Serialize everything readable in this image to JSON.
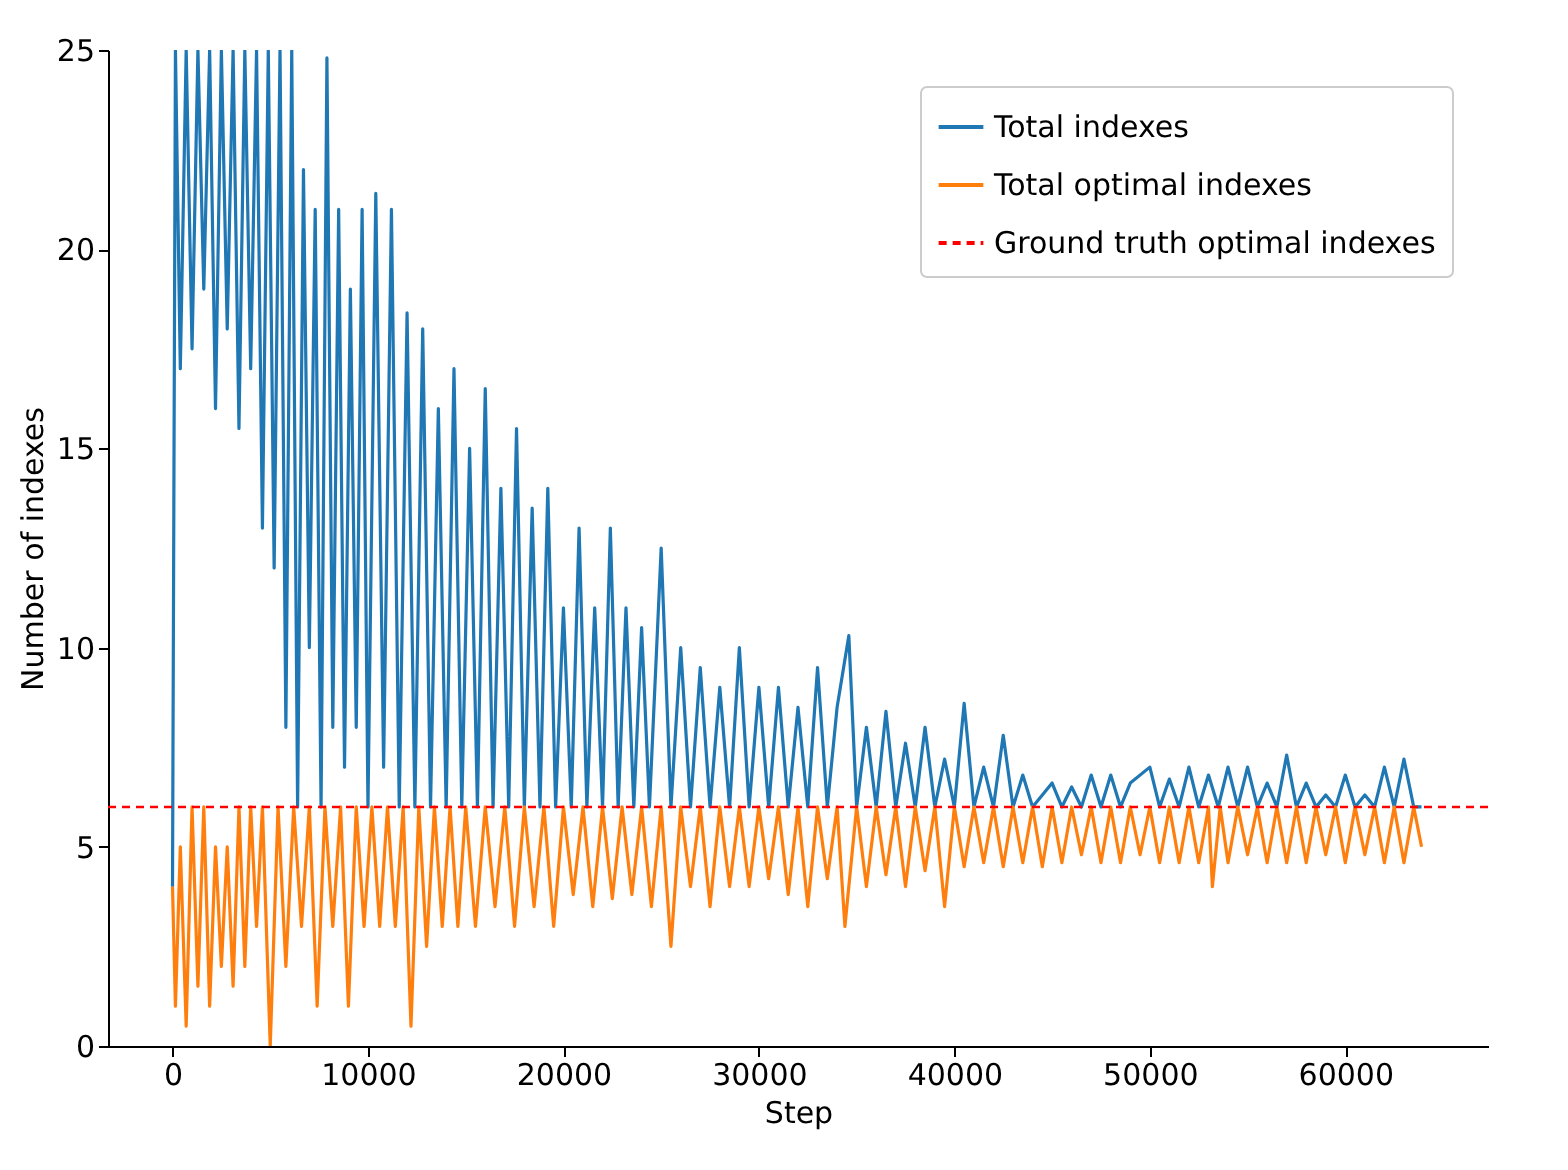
{
  "chart_data": {
    "type": "line",
    "xlabel": "Step",
    "ylabel": "Number of indexes",
    "xlim": [
      -3300,
      67300
    ],
    "ylim": [
      0,
      25
    ],
    "xticks": [
      0,
      10000,
      20000,
      30000,
      40000,
      50000,
      60000
    ],
    "yticks": [
      0,
      5,
      10,
      15,
      20,
      25
    ],
    "grid": false,
    "legend": "top right",
    "line_style": "solid",
    "marker": "none",
    "ref_lines": [
      {
        "axis": "y",
        "value": 6,
        "label": "Ground truth optimal indexes",
        "color": "#ff0000",
        "line_style": "dashed"
      }
    ],
    "series": [
      {
        "name": "Total indexes",
        "color": "#1f77b4",
        "x": [
          0,
          150,
          400,
          700,
          1000,
          1300,
          1600,
          1900,
          2200,
          2500,
          2800,
          3100,
          3400,
          3700,
          4000,
          4300,
          4600,
          4900,
          5200,
          5500,
          5800,
          6100,
          6400,
          6700,
          7000,
          7300,
          7600,
          7900,
          8200,
          8500,
          8800,
          9100,
          9400,
          9700,
          10000,
          10400,
          10800,
          11200,
          11600,
          12000,
          12400,
          12800,
          13200,
          13600,
          14000,
          14400,
          14800,
          15200,
          15600,
          16000,
          16400,
          16800,
          17200,
          17600,
          18000,
          18400,
          18800,
          19200,
          19600,
          20000,
          20400,
          20800,
          21200,
          21600,
          22000,
          22400,
          22800,
          23200,
          23600,
          24000,
          24400,
          25000,
          25500,
          26000,
          26500,
          27000,
          27500,
          28000,
          28500,
          29000,
          29500,
          30000,
          30500,
          31000,
          31500,
          32000,
          32500,
          33000,
          33500,
          34000,
          34600,
          35000,
          35500,
          36000,
          36500,
          37000,
          37500,
          38000,
          38500,
          39000,
          39500,
          40000,
          40500,
          41000,
          41500,
          42000,
          42500,
          43000,
          43500,
          44000,
          45000,
          45500,
          46000,
          46500,
          47000,
          47500,
          48000,
          48500,
          49000,
          50000,
          50500,
          51000,
          51500,
          52000,
          52500,
          53000,
          53500,
          54000,
          54500,
          55000,
          55500,
          56000,
          56500,
          57000,
          57500,
          58000,
          58500,
          59000,
          59500,
          60000,
          60500,
          61000,
          61500,
          62000,
          62500,
          63000,
          63500,
          63900
        ],
        "values": [
          4,
          25,
          17,
          25,
          17.5,
          25,
          19,
          25,
          16,
          25,
          18,
          25,
          15.5,
          25,
          17,
          25,
          13,
          25,
          12,
          25,
          8,
          25,
          6,
          22,
          10,
          21,
          6,
          24.8,
          8,
          21,
          7,
          19,
          8,
          21,
          6,
          21.4,
          7,
          21,
          6,
          18.4,
          6,
          18,
          6,
          16,
          6,
          17,
          6,
          15,
          6,
          16.5,
          6,
          14,
          6,
          15.5,
          6,
          13.5,
          6,
          14,
          6,
          11,
          6,
          13,
          6,
          11,
          6,
          13,
          6,
          11,
          6,
          10.5,
          6,
          12.5,
          6,
          10,
          6,
          9.5,
          6,
          9,
          6,
          10,
          6,
          9,
          6,
          9,
          6,
          8.5,
          6,
          9.5,
          6,
          8.5,
          10.3,
          6,
          8,
          6,
          8.4,
          6,
          7.6,
          6,
          8,
          6,
          7.2,
          6,
          8.6,
          6,
          7,
          6,
          7.8,
          6,
          6.8,
          6,
          6.6,
          6,
          6.5,
          6,
          6.8,
          6,
          6.8,
          6,
          6.6,
          7,
          6,
          6.7,
          6,
          7,
          6,
          6.8,
          6,
          7,
          6,
          7,
          6,
          6.6,
          6,
          7.3,
          6,
          6.6,
          6,
          6.3,
          6,
          6.8,
          6,
          6.3,
          6,
          7,
          6,
          7.2,
          6,
          6
        ]
      },
      {
        "name": "Total optimal indexes",
        "color": "#ff7f0e",
        "x": [
          0,
          150,
          400,
          700,
          1000,
          1300,
          1600,
          1900,
          2200,
          2500,
          2800,
          3100,
          3400,
          3700,
          4000,
          4300,
          4600,
          5000,
          5400,
          5800,
          6200,
          6600,
          7000,
          7400,
          7800,
          8200,
          8600,
          9000,
          9400,
          9800,
          10200,
          10600,
          11000,
          11400,
          11800,
          12200,
          12600,
          13000,
          13400,
          13800,
          14200,
          14600,
          15000,
          15500,
          16000,
          16500,
          17000,
          17500,
          18000,
          18500,
          19000,
          19500,
          20000,
          20500,
          21000,
          21500,
          22000,
          22500,
          23000,
          23500,
          24000,
          24500,
          25000,
          25500,
          26000,
          26500,
          27000,
          27500,
          28000,
          28500,
          29000,
          29500,
          30000,
          30500,
          31000,
          31500,
          32000,
          32500,
          33000,
          33500,
          34000,
          34400,
          35000,
          35500,
          36000,
          36500,
          37000,
          37500,
          38000,
          38500,
          39000,
          39500,
          40000,
          40500,
          41000,
          41500,
          42000,
          42500,
          43000,
          43500,
          44000,
          44500,
          45000,
          45500,
          46000,
          46500,
          47000,
          47500,
          48000,
          48500,
          49000,
          49500,
          50000,
          50500,
          51000,
          51500,
          52000,
          52500,
          53000,
          53200,
          53600,
          54000,
          54500,
          55000,
          55500,
          56000,
          56500,
          57000,
          57500,
          58000,
          58500,
          59000,
          59500,
          60000,
          60500,
          61000,
          61500,
          62000,
          62500,
          63000,
          63500,
          63900
        ],
        "values": [
          4,
          1,
          5,
          0.5,
          6,
          1.5,
          6,
          1,
          5,
          2,
          5,
          1.5,
          6,
          2,
          6,
          3,
          6,
          0,
          6,
          2,
          6,
          3,
          6,
          1,
          6,
          3,
          6,
          1,
          6,
          3,
          6,
          3,
          6,
          3,
          6,
          0.5,
          6,
          2.5,
          6,
          3,
          6,
          3,
          6,
          3,
          6,
          3.5,
          6,
          3,
          6,
          3.5,
          6,
          3,
          6,
          3.8,
          6,
          3.5,
          6,
          3.7,
          6,
          3.8,
          6,
          3.5,
          6,
          2.5,
          6,
          4,
          6,
          3.5,
          6,
          4,
          6,
          4,
          6,
          4.2,
          6,
          3.8,
          6,
          3.5,
          6,
          4.2,
          6,
          3,
          6,
          4,
          6,
          4.3,
          6,
          4,
          6,
          4.4,
          6,
          3.5,
          6,
          4.5,
          6,
          4.6,
          6,
          4.5,
          6,
          4.6,
          6,
          4.5,
          6,
          4.6,
          6,
          4.8,
          6,
          4.6,
          6,
          4.6,
          6,
          4.8,
          6,
          4.6,
          6,
          4.6,
          6,
          4.6,
          6,
          4,
          6,
          4.6,
          6,
          4.8,
          6,
          4.6,
          6,
          4.6,
          6,
          4.6,
          6,
          4.8,
          6,
          4.6,
          6,
          4.8,
          6,
          4.6,
          6,
          4.6,
          6,
          5
        ]
      }
    ]
  }
}
